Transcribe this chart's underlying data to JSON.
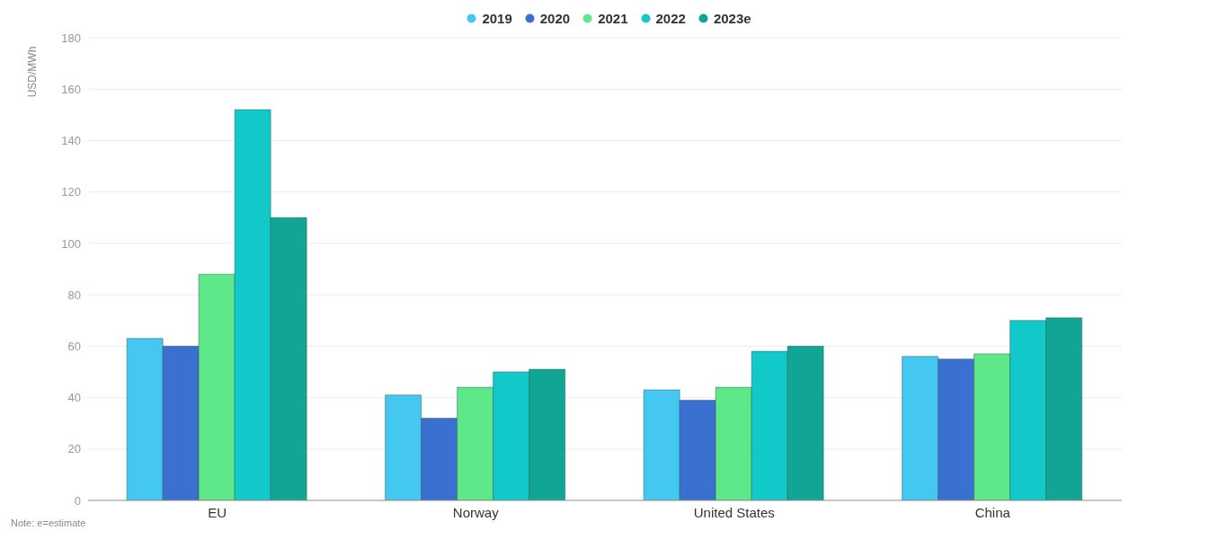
{
  "chart_data": {
    "type": "bar",
    "ylabel": "USD/MWh",
    "categories": [
      "EU",
      "Norway",
      "United States",
      "China"
    ],
    "series": [
      {
        "name": "2019",
        "color": "#44c8f2",
        "values": [
          63,
          41,
          43,
          56
        ]
      },
      {
        "name": "2020",
        "color": "#3a70cf",
        "values": [
          60,
          32,
          39,
          55
        ]
      },
      {
        "name": "2021",
        "color": "#5ee88a",
        "values": [
          88,
          44,
          44,
          57
        ]
      },
      {
        "name": "2022",
        "color": "#12c9c9",
        "values": [
          152,
          50,
          58,
          70
        ]
      },
      {
        "name": "2023e",
        "color": "#10a595",
        "values": [
          110,
          51,
          60,
          71
        ]
      }
    ],
    "ylim": [
      0,
      180
    ],
    "yticks": [
      0,
      20,
      40,
      60,
      80,
      100,
      120,
      140,
      160,
      180
    ],
    "grid": "y",
    "legend": "top",
    "annotations": [
      "Note: e=estimate"
    ]
  }
}
